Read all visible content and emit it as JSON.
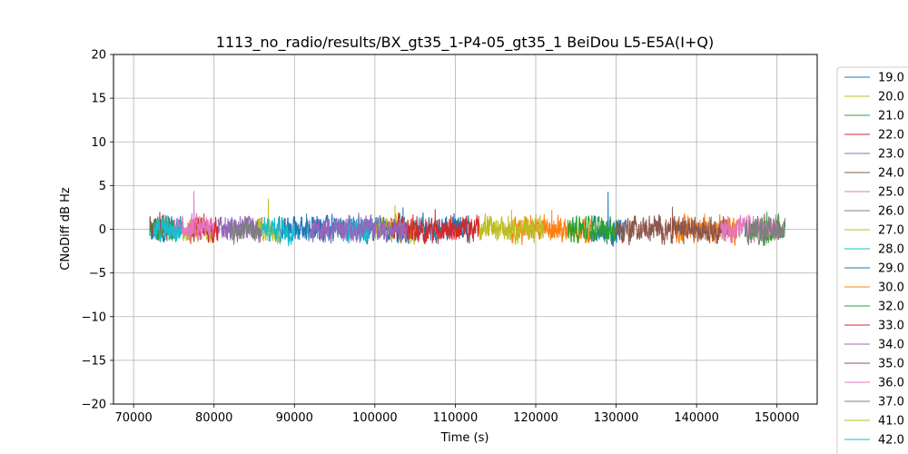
{
  "chart_data": {
    "type": "line",
    "title": "1113_no_radio/results/BX_gt35_1-P4-05_gt35_1 BeiDou L5-E5A(I+Q)",
    "xlabel": "Time (s)",
    "ylabel": "CNoDiff dB Hz",
    "xlim": [
      67500,
      155000
    ],
    "ylim": [
      -20,
      20
    ],
    "xticks": [
      70000,
      80000,
      90000,
      100000,
      110000,
      120000,
      130000,
      140000,
      150000
    ],
    "yticks": [
      -20,
      -15,
      -10,
      -5,
      0,
      5,
      10,
      15,
      20
    ],
    "grid": true,
    "legend_position": "right, outside plot, clipped at bottom",
    "series": [
      {
        "name": "19.0",
        "color": "#1f77b4",
        "x_range": [
          72000,
          76000
        ],
        "peak": 1.5
      },
      {
        "name": "20.0",
        "color": "#bcbd22",
        "x_range": [
          76000,
          80000
        ],
        "peak": 1.4
      },
      {
        "name": "21.0",
        "color": "#2ca02c",
        "x_range": [
          72000,
          75000
        ],
        "peak": 1.2
      },
      {
        "name": "22.0",
        "color": "#d62728",
        "x_range": [
          77000,
          80500
        ],
        "peak": 1.8
      },
      {
        "name": "23.0",
        "color": "#9467bd",
        "x_range": [
          80500,
          86000
        ],
        "peak": 1.5
      },
      {
        "name": "24.0",
        "color": "#8c564b",
        "x_range": [
          72000,
          74500
        ],
        "peak": 2.0
      },
      {
        "name": "25.0",
        "color": "#e377c2",
        "x_range": [
          75000,
          80000
        ],
        "peak": 4.4
      },
      {
        "name": "26.0",
        "color": "#7f7f7f",
        "x_range": [
          82000,
          86000
        ],
        "peak": 1.3
      },
      {
        "name": "27.0",
        "color": "#bcbd22",
        "x_range": [
          85500,
          88000
        ],
        "peak": 3.5
      },
      {
        "name": "28.0",
        "color": "#17becf",
        "x_range": [
          72500,
          76000
        ],
        "peak": 1.6
      },
      {
        "name": "29.0",
        "color": "#1f77b4",
        "x_range": [
          88000,
          95000
        ],
        "peak": 1.8
      },
      {
        "name": "30.0",
        "color": "#ff7f0e",
        "x_range": [
          117000,
          127000
        ],
        "peak": 2.2
      },
      {
        "name": "32.0",
        "color": "#2ca02c",
        "x_range": [
          124000,
          130000
        ],
        "peak": 1.5
      },
      {
        "name": "33.0",
        "color": "#d62728",
        "x_range": [
          102000,
          113000
        ],
        "peak": 2.3
      },
      {
        "name": "34.0",
        "color": "#9467bd",
        "x_range": [
          92000,
          104000
        ],
        "peak": 1.9
      },
      {
        "name": "35.0",
        "color": "#8c564b",
        "x_range": [
          130000,
          144000
        ],
        "peak": 2.6
      },
      {
        "name": "36.0",
        "color": "#e377c2",
        "x_range": [
          143000,
          150000
        ],
        "peak": 1.7
      },
      {
        "name": "37.0",
        "color": "#7f7f7f",
        "x_range": [
          146000,
          151000
        ],
        "peak": 1.4
      },
      {
        "name": "41.0",
        "color": "#bcbd22",
        "x_range": [
          113000,
          121000
        ],
        "peak": 2.2
      },
      {
        "name": "42.0",
        "color": "#17becf",
        "x_range": [
          86000,
          90000
        ],
        "peak": 1.3
      }
    ],
    "extra_series_segments": [
      {
        "color": "#1f77b4",
        "x_range": [
          95000,
          112000
        ],
        "peak": 2.5
      },
      {
        "color": "#1f77b4",
        "x_range": [
          127000,
          131000
        ],
        "peak": 4.3
      },
      {
        "color": "#ff7f0e",
        "x_range": [
          137000,
          145000
        ],
        "peak": 1.8
      },
      {
        "color": "#2ca02c",
        "x_range": [
          146500,
          151000
        ],
        "peak": 2.0
      },
      {
        "color": "#bcbd22",
        "x_range": [
          100000,
          105000
        ],
        "peak": 2.8
      },
      {
        "color": "#17becf",
        "x_range": [
          96000,
          100000
        ],
        "peak": 1.2
      }
    ]
  }
}
